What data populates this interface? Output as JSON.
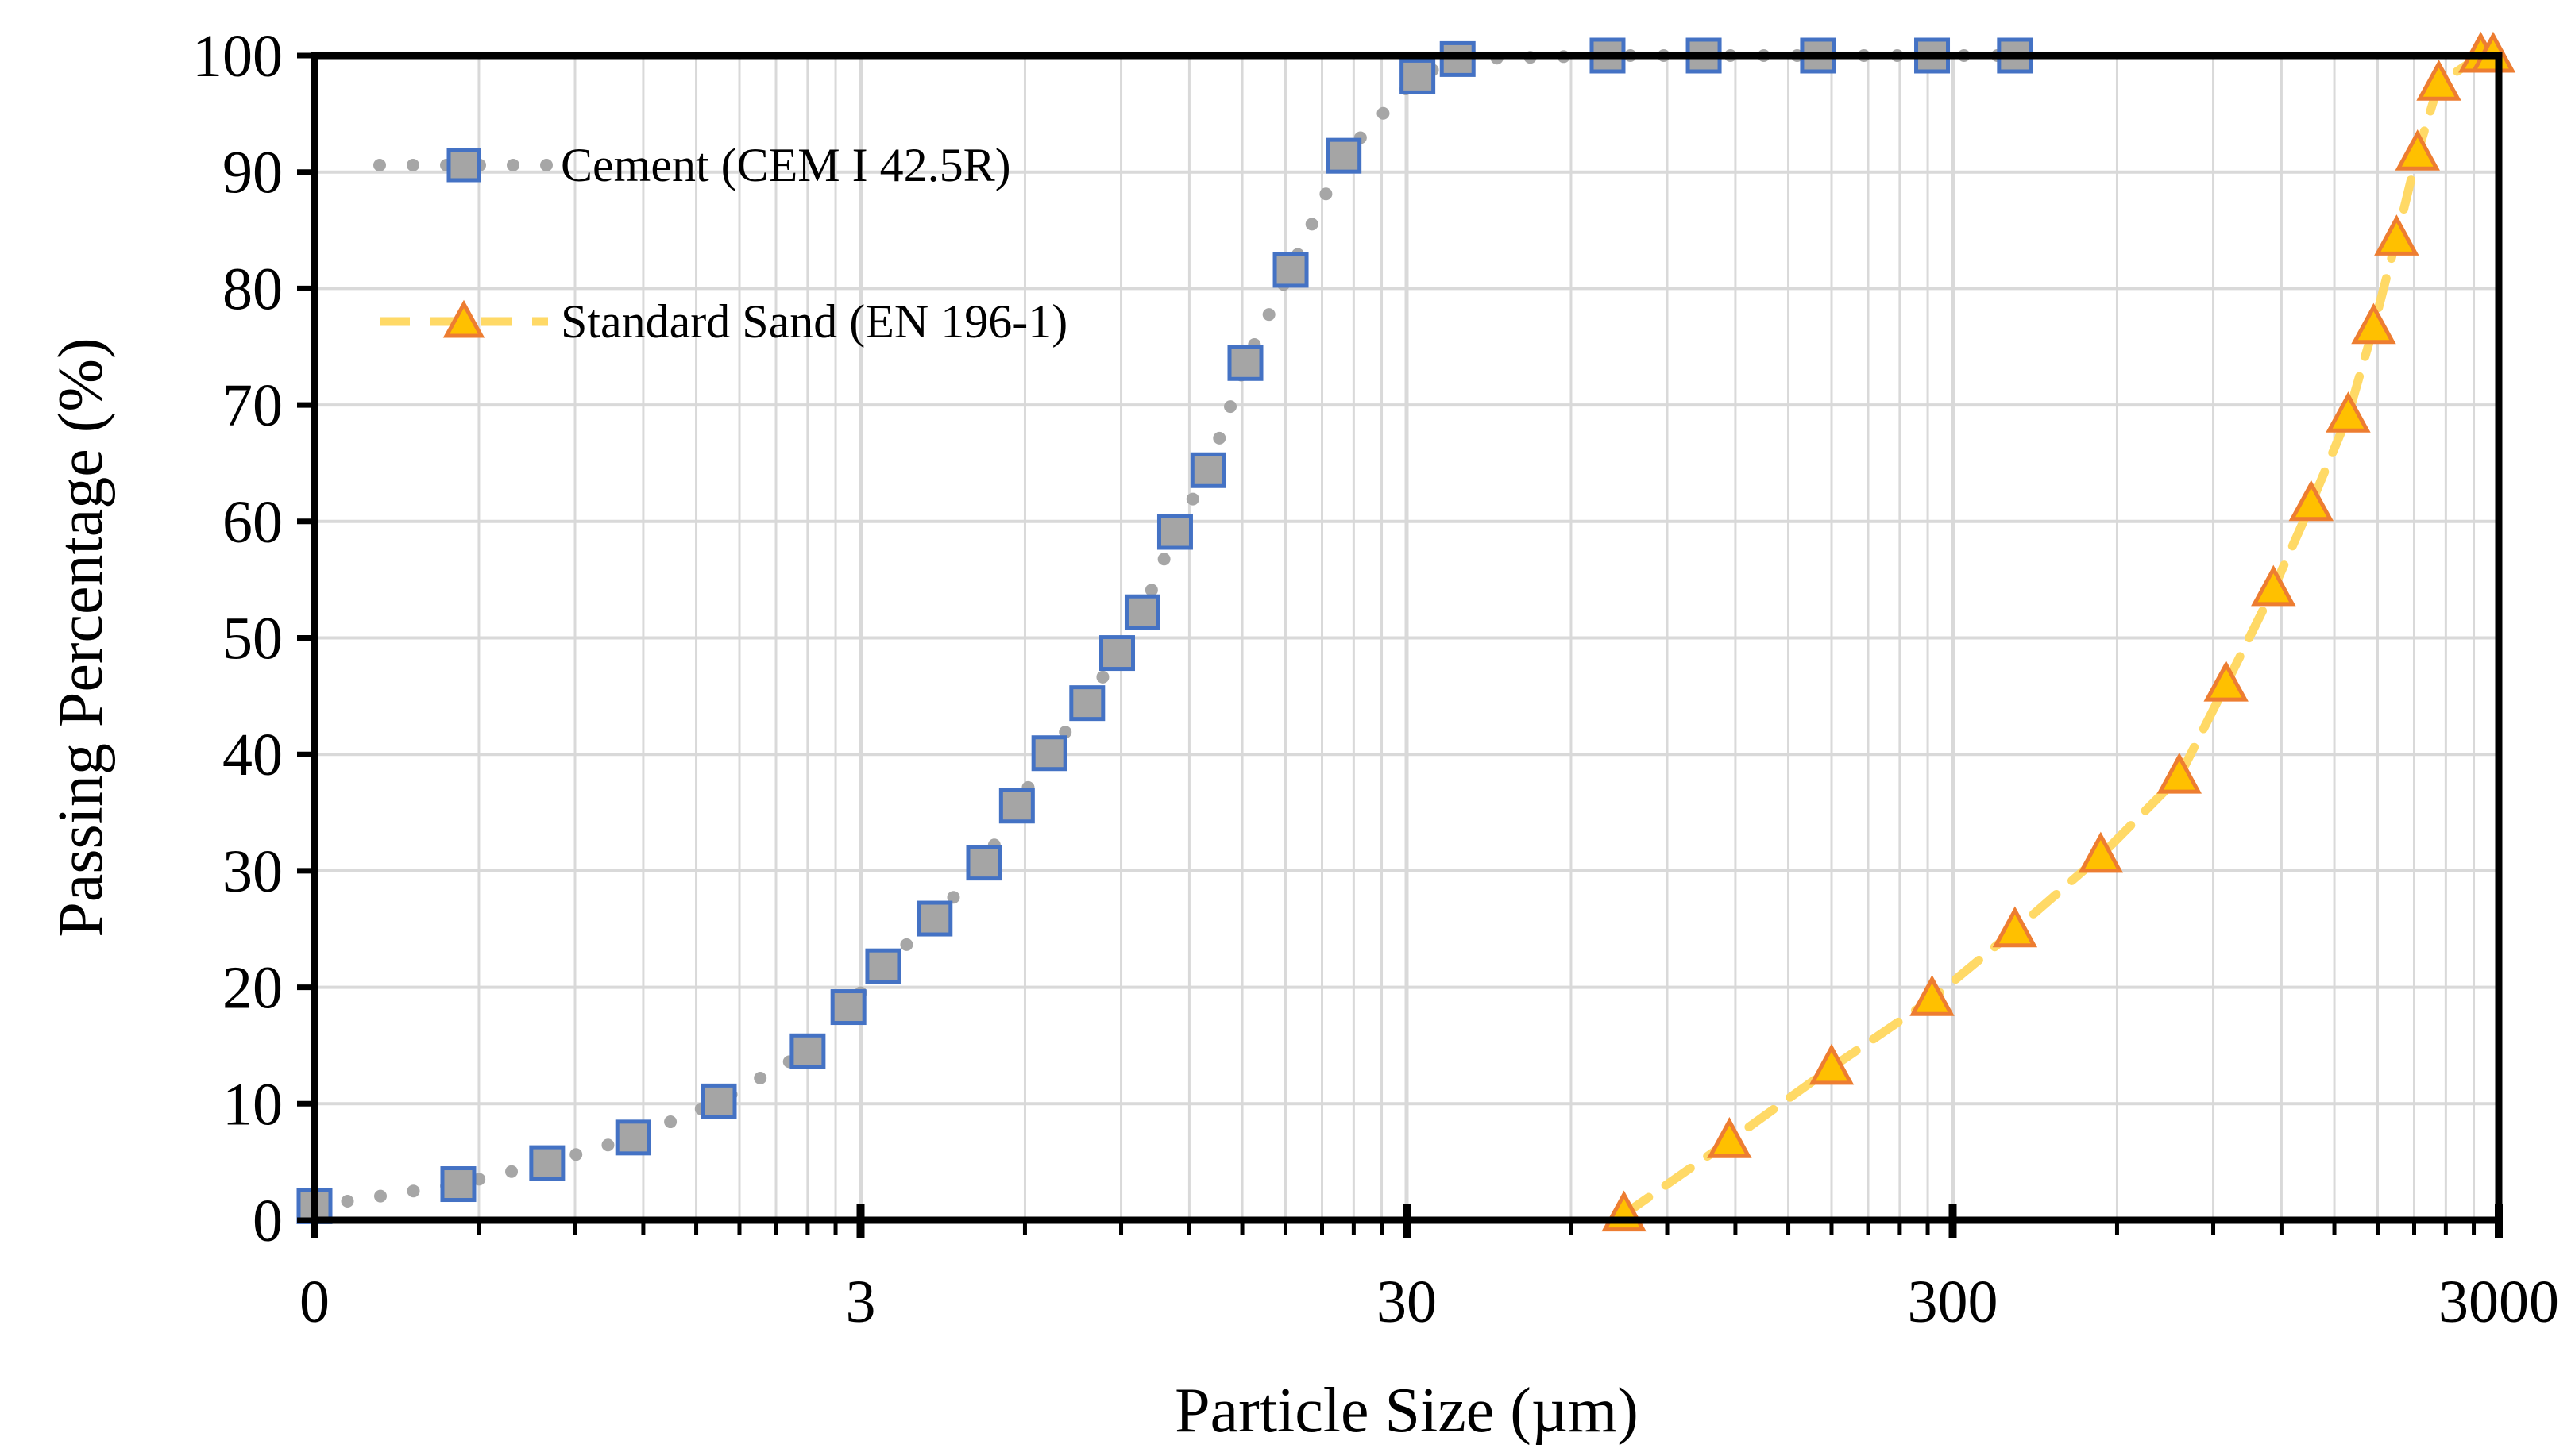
{
  "chart_data": {
    "type": "scatter",
    "title": "",
    "xlabel": "Particle Size (µm)",
    "ylabel": "Passing Percentage (%)",
    "xscale": "log",
    "xlim": [
      0.3,
      3000
    ],
    "ylim": [
      0,
      100
    ],
    "x_tick_values": [
      0.3,
      3,
      30,
      300,
      3000
    ],
    "x_tick_labels": [
      "0",
      "3",
      "30",
      "300",
      "3000"
    ],
    "y_ticks": [
      0,
      10,
      20,
      30,
      40,
      50,
      60,
      70,
      80,
      90,
      100
    ],
    "grid": true,
    "legend_position": "top-left",
    "colors": {
      "cement_line": "#a6a6a6",
      "cement_marker_fill": "#a5a5a5",
      "cement_marker_edge": "#4472c4",
      "sand_line": "#ffd966",
      "sand_marker_fill": "#ffc000",
      "sand_marker_edge": "#ed7d31",
      "grid": "#d9d9d9",
      "frame": "#000000"
    },
    "series": [
      {
        "name": "Cement (CEM I 42.5R)",
        "line_style": "dotted",
        "marker": "square",
        "points": [
          {
            "x": 0.3,
            "y": 1.2
          },
          {
            "x": 0.55,
            "y": 3.1
          },
          {
            "x": 0.8,
            "y": 4.9
          },
          {
            "x": 1.15,
            "y": 7.1
          },
          {
            "x": 1.65,
            "y": 10.2
          },
          {
            "x": 2.4,
            "y": 14.5
          },
          {
            "x": 2.85,
            "y": 18.3
          },
          {
            "x": 3.3,
            "y": 21.8
          },
          {
            "x": 4.1,
            "y": 25.9
          },
          {
            "x": 5.05,
            "y": 30.7
          },
          {
            "x": 5.8,
            "y": 35.6
          },
          {
            "x": 6.65,
            "y": 40.1
          },
          {
            "x": 7.8,
            "y": 44.4
          },
          {
            "x": 8.85,
            "y": 48.7
          },
          {
            "x": 9.85,
            "y": 52.2
          },
          {
            "x": 11.3,
            "y": 59.1
          },
          {
            "x": 13.0,
            "y": 64.4
          },
          {
            "x": 15.2,
            "y": 73.6
          },
          {
            "x": 18.4,
            "y": 81.6
          },
          {
            "x": 23.0,
            "y": 91.4
          },
          {
            "x": 31.4,
            "y": 98.2
          },
          {
            "x": 37.2,
            "y": 99.7
          },
          {
            "x": 70.0,
            "y": 100
          },
          {
            "x": 105.0,
            "y": 100
          },
          {
            "x": 170.0,
            "y": 100
          },
          {
            "x": 275.0,
            "y": 100
          },
          {
            "x": 390.0,
            "y": 100
          }
        ]
      },
      {
        "name": "Standard Sand (EN 196-1)",
        "line_style": "dashed",
        "marker": "triangle",
        "points": [
          {
            "x": 75.0,
            "y": 0.5
          },
          {
            "x": 117.0,
            "y": 6.8
          },
          {
            "x": 180.0,
            "y": 13.1
          },
          {
            "x": 275.0,
            "y": 19.0
          },
          {
            "x": 390.0,
            "y": 24.9
          },
          {
            "x": 560.0,
            "y": 31.3
          },
          {
            "x": 780.0,
            "y": 38.1
          },
          {
            "x": 950.0,
            "y": 46.0
          },
          {
            "x": 1160.0,
            "y": 54.2
          },
          {
            "x": 1360.0,
            "y": 61.5
          },
          {
            "x": 1590.0,
            "y": 69.1
          },
          {
            "x": 1770.0,
            "y": 76.7
          },
          {
            "x": 1950.0,
            "y": 84.3
          },
          {
            "x": 2130.0,
            "y": 91.6
          },
          {
            "x": 2330.0,
            "y": 97.6
          },
          {
            "x": 2780.0,
            "y": 100
          },
          {
            "x": 2930.0,
            "y": 100
          }
        ]
      }
    ]
  }
}
